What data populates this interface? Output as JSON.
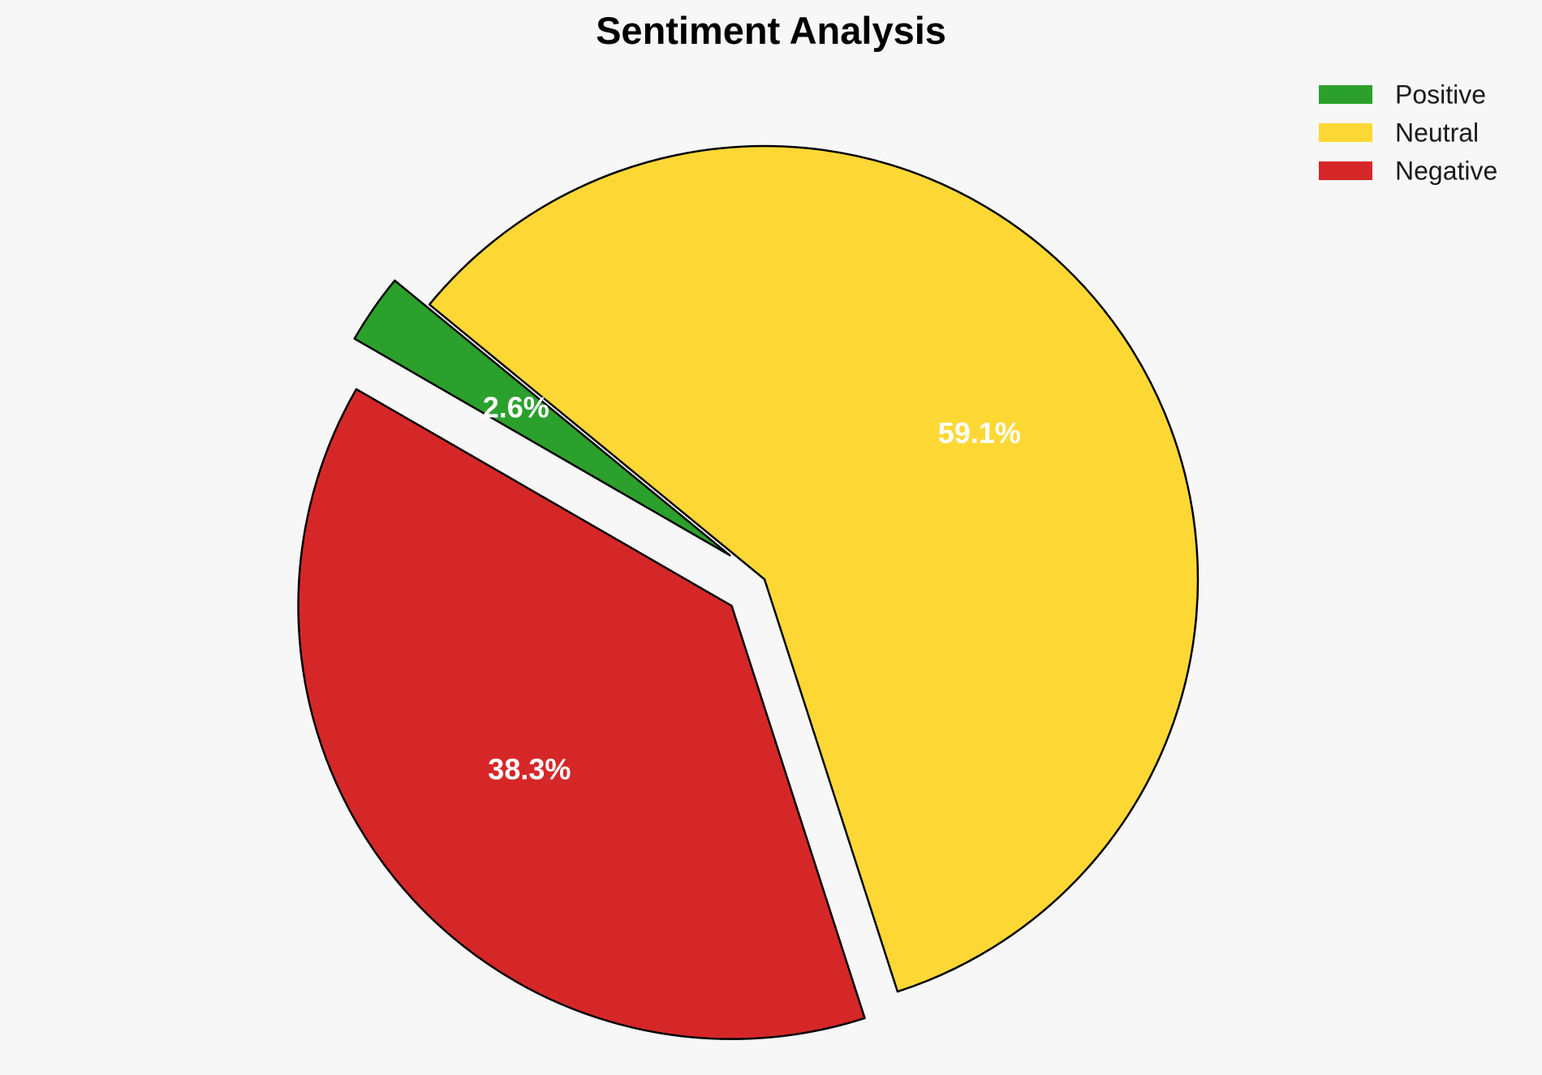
{
  "chart_data": {
    "type": "pie",
    "title": "Sentiment Analysis",
    "categories": [
      "Positive",
      "Neutral",
      "Negative"
    ],
    "values": [
      2.6,
      59.1,
      38.3
    ],
    "value_labels": [
      "2.6%",
      "59.1%",
      "38.3%"
    ],
    "colors": [
      "#2ca02c",
      "#fdd835",
      "#d62728"
    ],
    "edge_color": "#000000",
    "exploded": [
      true,
      false,
      true
    ],
    "legend": {
      "placement": "top-right",
      "entries": [
        "Positive",
        "Neutral",
        "Negative"
      ]
    }
  }
}
